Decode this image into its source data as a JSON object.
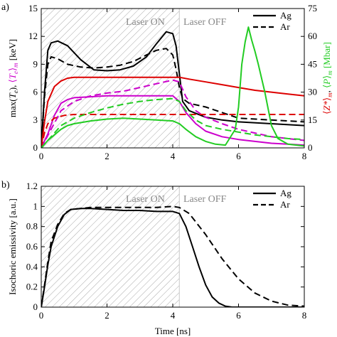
{
  "chart_data": [
    {
      "panel_label": "a)",
      "type": "line",
      "ylabel_left": "max(T_e), ⟨T_e⟩_m [keV]",
      "ylabel_right": "⟨Z*⟩_m, ⟨P⟩_m [Mbar]",
      "ylim_left": [
        0,
        15
      ],
      "ylim_right": [
        0,
        75
      ],
      "yticks_left": [
        "0",
        "3",
        "6",
        "9",
        "12",
        "15"
      ],
      "yticks_right": [
        "0",
        "15",
        "30",
        "45",
        "60",
        "75"
      ],
      "xlim": [
        0,
        8
      ],
      "xticks": [
        "0",
        "2",
        "4",
        "6",
        "8"
      ],
      "laser_on_interval": [
        0,
        4.2
      ],
      "laser_on_label": "Laser ON",
      "laser_off_label": "Laser OFF",
      "legend": [
        {
          "name": "Ag",
          "style": "solid"
        },
        {
          "name": "Ar",
          "style": "dashed"
        }
      ],
      "colors": {
        "maxTe": "#000000",
        "meanTe": "#cc00cc",
        "Zstar": "#dd0000",
        "pressure": "#22cc22"
      },
      "series": [
        {
          "name": "Ag",
          "quantity": "max(T_e)",
          "color": "#000000",
          "style": "solid",
          "axis": "left",
          "x": [
            0,
            0.1,
            0.2,
            0.3,
            0.5,
            0.8,
            1.2,
            1.6,
            2.0,
            2.4,
            2.8,
            3.2,
            3.5,
            3.8,
            4.0,
            4.1,
            4.2,
            4.3,
            4.5,
            5.0,
            5.5,
            6.0,
            7.0,
            8.0
          ],
          "y": [
            0,
            6.0,
            10.5,
            11.3,
            11.5,
            11.0,
            9.5,
            8.4,
            8.3,
            8.4,
            8.8,
            9.8,
            11.2,
            12.5,
            12.3,
            11.0,
            8.0,
            5.0,
            4.0,
            3.3,
            3.0,
            2.8,
            2.6,
            2.4
          ]
        },
        {
          "name": "Ar",
          "quantity": "max(T_e)",
          "color": "#000000",
          "style": "dashed",
          "axis": "left",
          "x": [
            0,
            0.1,
            0.2,
            0.3,
            0.5,
            0.8,
            1.2,
            1.6,
            2.0,
            2.4,
            2.8,
            3.2,
            3.5,
            3.8,
            4.0,
            4.1,
            4.2,
            4.3,
            4.5,
            5.0,
            5.5,
            6.0,
            7.0,
            8.0
          ],
          "y": [
            0,
            5.5,
            9.0,
            9.8,
            9.6,
            9.0,
            8.7,
            8.6,
            8.7,
            8.9,
            9.3,
            10.0,
            10.5,
            10.7,
            10.0,
            8.5,
            6.5,
            5.3,
            4.8,
            4.4,
            3.8,
            3.2,
            3.0,
            2.8
          ]
        },
        {
          "name": "Ag",
          "quantity": "⟨T_e⟩_m",
          "color": "#cc00cc",
          "style": "solid",
          "axis": "left",
          "x": [
            0,
            0.2,
            0.4,
            0.6,
            0.8,
            1.0,
            1.5,
            2.0,
            2.5,
            3.0,
            3.5,
            4.0,
            4.2,
            4.4,
            4.7,
            5.0,
            5.5,
            6.0,
            6.5,
            7.0,
            7.5,
            8.0
          ],
          "y": [
            0,
            1.5,
            3.5,
            4.8,
            5.2,
            5.4,
            5.5,
            5.6,
            5.6,
            5.6,
            5.6,
            5.6,
            5.0,
            3.8,
            2.6,
            1.8,
            1.2,
            0.9,
            0.7,
            0.5,
            0.4,
            0.3
          ]
        },
        {
          "name": "Ar",
          "quantity": "⟨T_e⟩_m",
          "color": "#cc00cc",
          "style": "dashed",
          "axis": "left",
          "x": [
            0,
            0.3,
            0.6,
            1.0,
            1.5,
            2.0,
            2.5,
            3.0,
            3.5,
            4.0,
            4.2,
            4.4,
            4.7,
            5.0,
            5.5,
            6.0,
            6.5,
            7.0,
            7.5,
            8.0
          ],
          "y": [
            0,
            2.0,
            4.0,
            5.0,
            5.6,
            5.9,
            6.1,
            6.5,
            6.9,
            7.3,
            7.1,
            5.5,
            4.0,
            3.3,
            2.6,
            2.0,
            1.6,
            1.2,
            1.0,
            0.8
          ]
        },
        {
          "name": "Ag",
          "quantity": "⟨Z*⟩_m",
          "color": "#dd0000",
          "style": "solid",
          "axis": "right",
          "x": [
            0,
            0.1,
            0.2,
            0.4,
            0.6,
            0.8,
            1.0,
            1.5,
            2.0,
            2.5,
            3.0,
            3.5,
            4.0,
            4.2,
            4.5,
            5.0,
            5.5,
            6.0,
            6.5,
            7.0,
            7.5,
            8.0
          ],
          "y": [
            0,
            14,
            25,
            33,
            36,
            37.5,
            38,
            38,
            38,
            38,
            38,
            38,
            38,
            38,
            37,
            35.5,
            34,
            32.5,
            31,
            30,
            29,
            28
          ]
        },
        {
          "name": "Ar",
          "quantity": "⟨Z*⟩_m",
          "color": "#dd0000",
          "style": "dashed",
          "axis": "right",
          "x": [
            0,
            0.1,
            0.2,
            0.4,
            0.7,
            1.0,
            2.0,
            3.0,
            4.0,
            5.0,
            6.0,
            7.0,
            8.0
          ],
          "y": [
            0,
            8,
            13,
            16,
            17.5,
            18,
            18,
            18,
            18,
            18,
            18,
            18,
            18
          ]
        },
        {
          "name": "Ag",
          "quantity": "⟨P⟩_m",
          "color": "#22cc22",
          "style": "solid",
          "axis": "right",
          "x": [
            0,
            0.2,
            0.4,
            0.6,
            0.8,
            1.0,
            1.5,
            2.0,
            2.5,
            3.0,
            3.5,
            4.0,
            4.2,
            4.4,
            4.7,
            5.0,
            5.3,
            5.6,
            5.9,
            6.0,
            6.1,
            6.2,
            6.3,
            6.4,
            6.5,
            6.6,
            6.8,
            7.0,
            7.2,
            7.5,
            8.0
          ],
          "y": [
            0,
            4,
            7,
            10,
            12,
            13,
            14.5,
            15.5,
            16,
            15.5,
            15,
            14.5,
            13,
            10,
            6,
            3.5,
            2,
            1.5,
            10,
            22,
            45,
            57,
            65,
            58,
            52,
            45,
            30,
            12,
            5,
            2,
            1
          ]
        },
        {
          "name": "Ar",
          "quantity": "⟨P⟩_m",
          "color": "#22cc22",
          "style": "dashed",
          "axis": "right",
          "x": [
            0,
            0.2,
            0.4,
            0.6,
            0.8,
            1.0,
            1.5,
            2.0,
            2.5,
            3.0,
            3.5,
            4.0,
            4.2,
            4.4,
            4.7,
            5.0,
            5.5,
            6.0,
            6.5,
            7.0,
            7.5,
            8.0
          ],
          "y": [
            0,
            4,
            8,
            12,
            14,
            16,
            19,
            21.5,
            23.5,
            25,
            26,
            26.5,
            25,
            20,
            15,
            12,
            10,
            8.5,
            7,
            6,
            5,
            4.5
          ]
        }
      ]
    },
    {
      "panel_label": "b)",
      "type": "line",
      "xlabel": "Time [ns]",
      "ylabel": "Isochoric emissivity [a.u.]",
      "ylim": [
        0,
        1.2
      ],
      "yticks": [
        "0",
        "0.2",
        "0.4",
        "0.6",
        "0.8",
        "1",
        "1.2"
      ],
      "xlim": [
        0,
        8
      ],
      "xticks": [
        "0",
        "2",
        "4",
        "6",
        "8"
      ],
      "laser_on_interval": [
        0,
        4.2
      ],
      "laser_on_label": "Laser ON",
      "laser_off_label": "Laser OFF",
      "legend": [
        {
          "name": "Ag",
          "style": "solid"
        },
        {
          "name": "Ar",
          "style": "dashed"
        }
      ],
      "series": [
        {
          "name": "Ag",
          "color": "#000000",
          "style": "solid",
          "x": [
            0,
            0.1,
            0.2,
            0.3,
            0.5,
            0.7,
            0.9,
            1.2,
            1.5,
            2.0,
            2.5,
            3.0,
            3.5,
            4.0,
            4.2,
            4.4,
            4.6,
            4.8,
            5.0,
            5.2,
            5.4,
            5.6,
            5.8,
            6.0,
            8.0
          ],
          "y": [
            0,
            0.2,
            0.42,
            0.6,
            0.8,
            0.92,
            0.97,
            0.98,
            0.98,
            0.97,
            0.96,
            0.96,
            0.95,
            0.95,
            0.93,
            0.8,
            0.6,
            0.4,
            0.22,
            0.1,
            0.04,
            0.01,
            0,
            0,
            0
          ]
        },
        {
          "name": "Ar",
          "color": "#000000",
          "style": "dashed",
          "x": [
            0,
            0.1,
            0.2,
            0.3,
            0.5,
            0.7,
            0.9,
            1.2,
            1.5,
            2.0,
            2.5,
            3.0,
            3.5,
            4.0,
            4.2,
            4.5,
            5.0,
            5.5,
            6.0,
            6.5,
            7.0,
            7.5,
            8.0
          ],
          "y": [
            0,
            0.22,
            0.45,
            0.65,
            0.82,
            0.93,
            0.97,
            0.98,
            0.99,
            0.99,
            0.99,
            0.99,
            0.99,
            1.0,
            0.99,
            0.93,
            0.72,
            0.48,
            0.28,
            0.14,
            0.06,
            0.02,
            0.01
          ]
        }
      ]
    }
  ]
}
